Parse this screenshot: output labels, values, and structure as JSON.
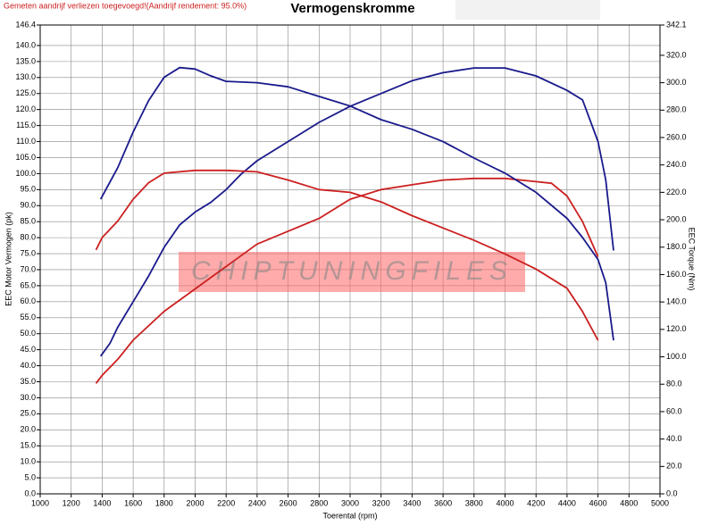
{
  "chart_data": {
    "type": "line",
    "title": "Vermogenskromme",
    "note": "Gemeten aandrijf verliezen toegevoegd!(Aandrijf rendement: 95.0%)",
    "watermark": "CHIPTUNINGFILES",
    "xlabel": "Toerental (rpm)",
    "ylabel": "EEC Motor Vermogen (pk)",
    "y2label": "EEC Torque (Nm)",
    "grid": true,
    "xlim": [
      1000,
      5000
    ],
    "xticks": [
      1000,
      1200,
      1400,
      1600,
      1800,
      2000,
      2200,
      2400,
      2600,
      2800,
      3000,
      3200,
      3400,
      3600,
      3800,
      4000,
      4200,
      4400,
      4600,
      4800,
      5000
    ],
    "ylim": [
      0,
      146.4
    ],
    "yticks": [
      {
        "value": 0,
        "label": "0.0"
      },
      {
        "value": 5,
        "label": "5.0"
      },
      {
        "value": 10,
        "label": "10.0"
      },
      {
        "value": 15,
        "label": "15.0"
      },
      {
        "value": 20,
        "label": "20.0"
      },
      {
        "value": 25,
        "label": "25.0"
      },
      {
        "value": 30,
        "label": "30.0"
      },
      {
        "value": 35,
        "label": "35.0"
      },
      {
        "value": 40,
        "label": "40.0"
      },
      {
        "value": 45,
        "label": "45.0"
      },
      {
        "value": 50,
        "label": "50.0"
      },
      {
        "value": 55,
        "label": "55.0"
      },
      {
        "value": 60,
        "label": "60.0"
      },
      {
        "value": 65,
        "label": "65.0"
      },
      {
        "value": 70,
        "label": "70.0"
      },
      {
        "value": 75,
        "label": "75.0"
      },
      {
        "value": 80,
        "label": "80.0"
      },
      {
        "value": 85,
        "label": "85.0"
      },
      {
        "value": 90,
        "label": "90.0"
      },
      {
        "value": 95,
        "label": "95.0"
      },
      {
        "value": 100,
        "label": "100.0"
      },
      {
        "value": 105,
        "label": "105.0"
      },
      {
        "value": 110,
        "label": "110.0"
      },
      {
        "value": 115,
        "label": "115.0"
      },
      {
        "value": 120,
        "label": "120.0"
      },
      {
        "value": 125,
        "label": "125.0"
      },
      {
        "value": 130,
        "label": "130.0"
      },
      {
        "value": 135,
        "label": "135.0"
      },
      {
        "value": 140,
        "label": "140.0"
      },
      146.4
    ],
    "y2lim": [
      0,
      342.1
    ],
    "y2ticks": [
      {
        "value": 0,
        "label": "0.0"
      },
      {
        "value": 20,
        "label": "20.0"
      },
      {
        "value": 40,
        "label": "40.0"
      },
      {
        "value": 60,
        "label": "60.0"
      },
      {
        "value": 80,
        "label": "80.0"
      },
      {
        "value": 100,
        "label": "100.0"
      },
      {
        "value": 120,
        "label": "120.0"
      },
      {
        "value": 140,
        "label": "140.0"
      },
      {
        "value": 160,
        "label": "160.0"
      },
      {
        "value": 180,
        "label": "180.0"
      },
      {
        "value": 200,
        "label": "200.0"
      },
      {
        "value": 220,
        "label": "220.0"
      },
      {
        "value": 240,
        "label": "240.0"
      },
      {
        "value": 260,
        "label": "260.0"
      },
      {
        "value": 280,
        "label": "280.0"
      },
      {
        "value": 300,
        "label": "300.0"
      },
      {
        "value": 320,
        "label": "320.0"
      },
      342.1
    ],
    "series": [
      {
        "color": "#1a1a8c",
        "x": [
          1390,
          1450,
          1500,
          1600,
          1700,
          1800,
          1900,
          2000,
          2100,
          2200,
          2300,
          2400,
          2600,
          2800,
          3000,
          3200,
          3400,
          3600,
          3800,
          4000,
          4200,
          4400,
          4500,
          4600,
          4650,
          4700
        ],
        "values": [
          43,
          47,
          52,
          60,
          68,
          77,
          84,
          88,
          91,
          95,
          100,
          104,
          110,
          116,
          121,
          125,
          129,
          131.5,
          133,
          133,
          130.5,
          126,
          123,
          110,
          98,
          76
        ]
      },
      {
        "color": "#cc2020",
        "x": [
          1360,
          1400,
          1500,
          1600,
          1800,
          2000,
          2200,
          2400,
          2600,
          2800,
          3000,
          3200,
          3400,
          3600,
          3800,
          4000,
          4200,
          4300,
          4400,
          4500,
          4600
        ],
        "values": [
          34.5,
          37,
          42,
          48,
          57,
          64,
          71,
          78,
          82,
          86,
          92,
          95,
          96.5,
          98,
          98.5,
          98.5,
          97.5,
          97,
          93,
          85,
          74
        ]
      },
      {
        "color": "#1a1a8c",
        "axis": "y2",
        "x": [
          1390,
          1500,
          1600,
          1700,
          1800,
          1900,
          2000,
          2100,
          2200,
          2400,
          2600,
          2800,
          3000,
          3200,
          3400,
          3600,
          3800,
          4000,
          4200,
          4400,
          4500,
          4600,
          4650,
          4700
        ],
        "values": [
          215,
          238,
          264,
          287,
          304,
          311,
          310,
          305,
          301,
          300,
          297,
          290,
          283,
          273,
          266,
          257,
          245,
          234,
          220,
          201,
          187,
          171,
          154,
          112
        ]
      },
      {
        "color": "#cc2020",
        "axis": "y2",
        "x": [
          1360,
          1400,
          1500,
          1600,
          1700,
          1800,
          2000,
          2200,
          2400,
          2600,
          2800,
          3000,
          3200,
          3400,
          3600,
          3800,
          4000,
          4200,
          4400,
          4500,
          4600
        ],
        "values": [
          178,
          187,
          199,
          215,
          227,
          234,
          236,
          236,
          235,
          229,
          222,
          220,
          213,
          203,
          194,
          185,
          175,
          164,
          150,
          133,
          112
        ]
      }
    ]
  }
}
